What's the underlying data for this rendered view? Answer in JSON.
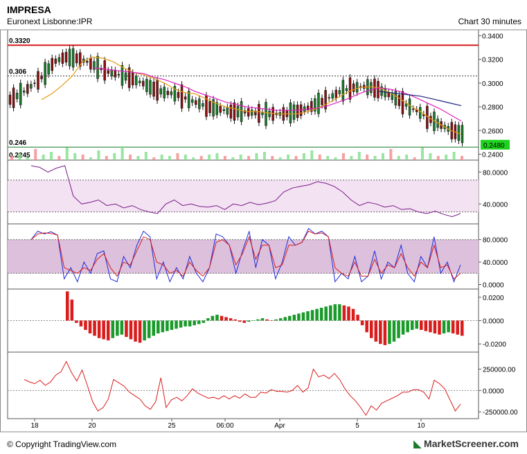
{
  "header": {
    "title": "IMPRESA",
    "subtitle": "Euronext Lisbonne:IPR",
    "timeframe": "Chart 30 minutes"
  },
  "footer": {
    "copyright": "© Copyright TradingView.com",
    "brand_logo": "MarketScreener.com"
  },
  "chart_data": [
    {
      "type": "line",
      "panel": "price",
      "price_ticks": [
        "0.3400",
        "0.3200",
        "0.3000",
        "0.2800",
        "0.2600",
        "0.2400"
      ],
      "ylim": [
        0.235,
        0.345
      ],
      "levels": [
        {
          "label": "0.3320",
          "value": 0.332,
          "color": "#d91c1c"
        },
        {
          "label": "0.306",
          "value": 0.306,
          "color": "#333333"
        },
        {
          "label": "0.246",
          "value": 0.246,
          "color": "#1a7a2a"
        },
        {
          "label": "0.2245",
          "value": 0.2245,
          "color": "#1a7a2a"
        }
      ],
      "last_price_label": "0.2480",
      "x_labels": [
        "18",
        "20",
        "25",
        "06:00",
        "Apr",
        "5",
        "10"
      ],
      "series": [
        {
          "color": "#e69b10",
          "values": [
            0.286,
            0.291,
            0.298,
            0.306,
            0.318,
            0.322,
            0.321,
            0.318,
            0.313,
            0.309,
            0.307,
            0.304,
            0.3,
            0.295,
            0.292,
            0.291,
            0.287,
            0.283,
            0.28,
            0.278,
            0.276,
            0.276,
            0.275,
            0.274,
            0.274,
            0.274,
            0.276,
            0.279,
            0.283,
            0.288,
            0.293,
            0.296,
            0.297,
            0.296,
            0.292,
            0.287,
            0.281,
            0.276,
            0.27,
            0.265,
            0.26,
            0.257
          ]
        },
        {
          "color": "#e020c0",
          "values": [
            null,
            null,
            null,
            null,
            null,
            0.313,
            0.312,
            0.311,
            0.31,
            0.309,
            0.308,
            0.305,
            0.303,
            0.3,
            0.297,
            0.293,
            0.29,
            0.287,
            0.284,
            0.282,
            0.28,
            0.279,
            0.278,
            0.277,
            0.277,
            0.277,
            0.278,
            0.279,
            0.281,
            0.284,
            0.287,
            0.291,
            0.294,
            0.296,
            0.295,
            0.293,
            0.29,
            0.286,
            0.282,
            0.278,
            0.273,
            0.268
          ]
        },
        {
          "color": "#1a237e",
          "values": [
            null,
            null,
            null,
            null,
            null,
            null,
            null,
            null,
            null,
            null,
            null,
            null,
            null,
            null,
            null,
            null,
            null,
            null,
            null,
            null,
            null,
            null,
            null,
            null,
            null,
            null,
            null,
            null,
            null,
            null,
            null,
            null,
            null,
            0.293,
            0.292,
            0.291,
            0.29,
            0.289,
            0.287,
            0.285,
            0.283,
            0.281
          ]
        }
      ]
    },
    {
      "type": "line",
      "panel": "rsi",
      "yticks": [
        "80.0000",
        "40.0000"
      ],
      "ylim": [
        15,
        95
      ],
      "band": [
        30,
        70
      ],
      "series": [
        {
          "color": "#7b1a8a",
          "values": [
            88,
            86,
            80,
            85,
            88,
            50,
            40,
            42,
            45,
            38,
            40,
            35,
            38,
            33,
            30,
            28,
            40,
            45,
            38,
            40,
            37,
            36,
            38,
            33,
            40,
            38,
            42,
            39,
            41,
            44,
            55,
            60,
            62,
            64,
            68,
            66,
            62,
            55,
            45,
            38,
            42,
            40,
            36,
            38,
            33,
            34,
            30,
            28,
            31,
            27,
            24,
            28
          ]
        }
      ]
    },
    {
      "type": "line",
      "panel": "stochastic",
      "yticks": [
        "80.0000",
        "40.0000",
        "0.0000"
      ],
      "ylim": [
        -8,
        108
      ],
      "band": [
        20,
        80
      ],
      "series": [
        {
          "color": "#1c2ad9",
          "values": [
            80,
            95,
            90,
            94,
            88,
            10,
            30,
            5,
            40,
            20,
            55,
            60,
            10,
            5,
            50,
            30,
            70,
            95,
            85,
            10,
            40,
            5,
            30,
            10,
            50,
            20,
            5,
            30,
            90,
            85,
            70,
            20,
            60,
            95,
            30,
            80,
            70,
            10,
            40,
            85,
            70,
            75,
            100,
            90,
            95,
            85,
            5,
            20,
            10,
            50,
            5,
            15,
            60,
            10,
            40,
            30,
            70,
            20,
            5,
            50,
            30,
            85,
            20,
            40,
            5,
            35
          ]
        },
        {
          "color": "#d91c1c",
          "values": [
            80,
            90,
            92,
            91,
            88,
            30,
            25,
            20,
            30,
            25,
            45,
            55,
            30,
            15,
            40,
            35,
            60,
            85,
            80,
            40,
            35,
            20,
            25,
            15,
            40,
            25,
            15,
            30,
            75,
            80,
            70,
            35,
            55,
            85,
            45,
            70,
            70,
            30,
            35,
            70,
            70,
            75,
            95,
            90,
            92,
            85,
            30,
            20,
            15,
            40,
            15,
            15,
            45,
            20,
            35,
            30,
            55,
            30,
            15,
            40,
            30,
            70,
            30,
            35,
            10,
            20
          ]
        }
      ]
    },
    {
      "type": "bar",
      "panel": "macd",
      "yticks": [
        "0.0200",
        "0.0000",
        "-0.0200"
      ],
      "ylim": [
        -0.027,
        0.027
      ],
      "values": [
        0.025,
        0.018,
        -0.002,
        -0.005,
        -0.008,
        -0.011,
        -0.013,
        -0.015,
        -0.016,
        -0.017,
        -0.015,
        -0.013,
        -0.012,
        -0.014,
        -0.016,
        -0.018,
        -0.019,
        -0.017,
        -0.015,
        -0.013,
        -0.011,
        -0.01,
        -0.009,
        -0.008,
        -0.007,
        -0.006,
        -0.005,
        -0.005,
        -0.004,
        -0.003,
        -0.002,
        0.002,
        0.004,
        0.005,
        0.004,
        0.003,
        0.002,
        0.001,
        -0.001,
        -0.002,
        -0.001,
        0.0,
        0.001,
        0.002,
        0.001,
        0.0,
        0.001,
        0.002,
        0.003,
        0.004,
        0.005,
        0.006,
        0.007,
        0.008,
        0.009,
        0.01,
        0.011,
        0.012,
        0.013,
        0.014,
        0.014,
        0.013,
        0.012,
        0.01,
        0.005,
        -0.004,
        -0.01,
        -0.015,
        -0.018,
        -0.02,
        -0.021,
        -0.02,
        -0.018,
        -0.015,
        -0.012,
        -0.01,
        -0.008,
        -0.007,
        -0.008,
        -0.009,
        -0.01,
        -0.011,
        -0.012,
        -0.011,
        -0.01,
        -0.011,
        -0.012,
        -0.013
      ]
    },
    {
      "type": "line",
      "panel": "obv",
      "yticks": [
        "250000.00",
        "0.0000",
        "-250000.00"
      ],
      "ylim": [
        -330000,
        450000
      ],
      "series": [
        {
          "color": "#d91c1c",
          "values": [
            130000,
            100000,
            80000,
            120000,
            60000,
            100000,
            180000,
            220000,
            340000,
            210000,
            110000,
            240000,
            60000,
            -130000,
            -240000,
            -200000,
            -100000,
            130000,
            90000,
            50000,
            -20000,
            -60000,
            -100000,
            -180000,
            -220000,
            -130000,
            150000,
            -200000,
            -110000,
            -80000,
            -120000,
            -60000,
            20000,
            -30000,
            -60000,
            -90000,
            -80000,
            -100000,
            -60000,
            -100000,
            -60000,
            -90000,
            -40000,
            -80000,
            -80000,
            -20000,
            -30000,
            10000,
            -10000,
            -10000,
            -20000,
            0,
            60000,
            -20000,
            30000,
            250000,
            160000,
            180000,
            140000,
            200000,
            130000,
            20000,
            -60000,
            -120000,
            -200000,
            -290000,
            -180000,
            -230000,
            -150000,
            -120000,
            -90000,
            -60000,
            -20000,
            -20000,
            10000,
            10000,
            -20000,
            -100000,
            120000,
            80000,
            20000,
            -110000,
            -240000,
            -160000
          ]
        }
      ]
    }
  ]
}
